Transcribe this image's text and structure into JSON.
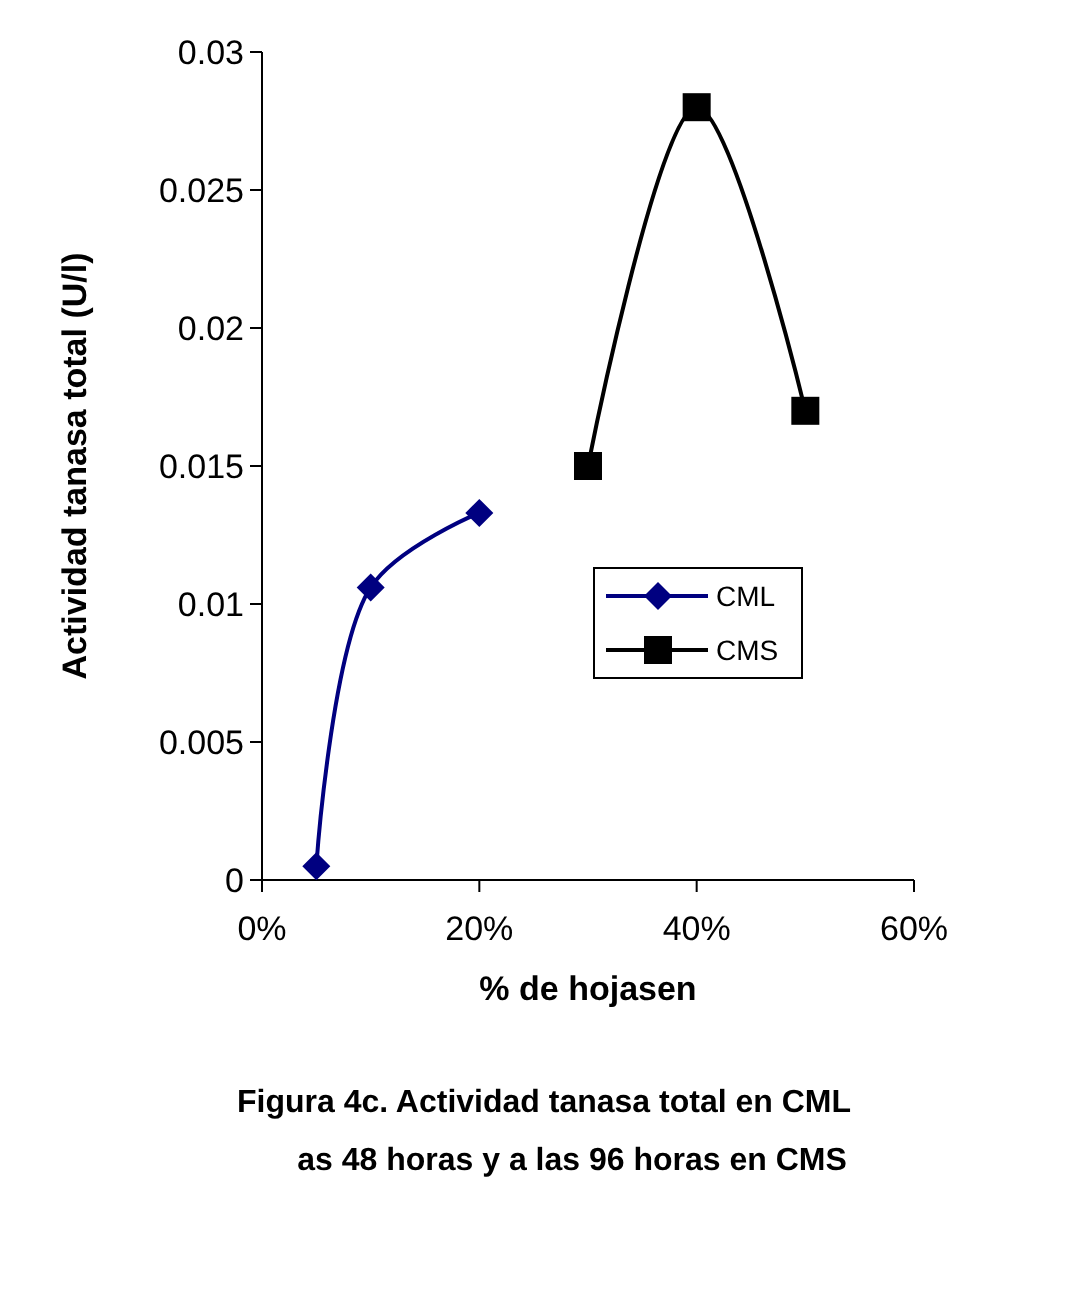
{
  "chart_data": {
    "type": "line",
    "xlabel": "% de hojasen",
    "ylabel": "Actividad tanasa total (U/l)",
    "annotations": [
      "Figura 4c. Actividad tanasa total en CML\nas 48 horas y a las 96 horas en CMS"
    ],
    "series": [
      {
        "name": "CML",
        "color": "#000080",
        "marker": "diamond",
        "x": [
          5,
          10,
          20
        ],
        "values": [
          0.0005,
          0.0106,
          0.0133
        ]
      },
      {
        "name": "CMS",
        "color": "#000000",
        "marker": "square",
        "x": [
          30,
          40,
          50
        ],
        "values": [
          0.015,
          0.028,
          0.017
        ]
      }
    ],
    "xlim": [
      0,
      60
    ],
    "xticks": [
      {
        "value": 0,
        "label": "0%"
      },
      {
        "value": 20,
        "label": "20%"
      },
      {
        "value": 40,
        "label": "40%"
      },
      {
        "value": 60,
        "label": "60%"
      }
    ],
    "ylim": [
      0,
      0.03
    ],
    "yticks": [
      0,
      0.005,
      0.01,
      0.015,
      0.02,
      0.025,
      0.03
    ],
    "grid": false,
    "legend": "right",
    "line_style": "solid"
  }
}
